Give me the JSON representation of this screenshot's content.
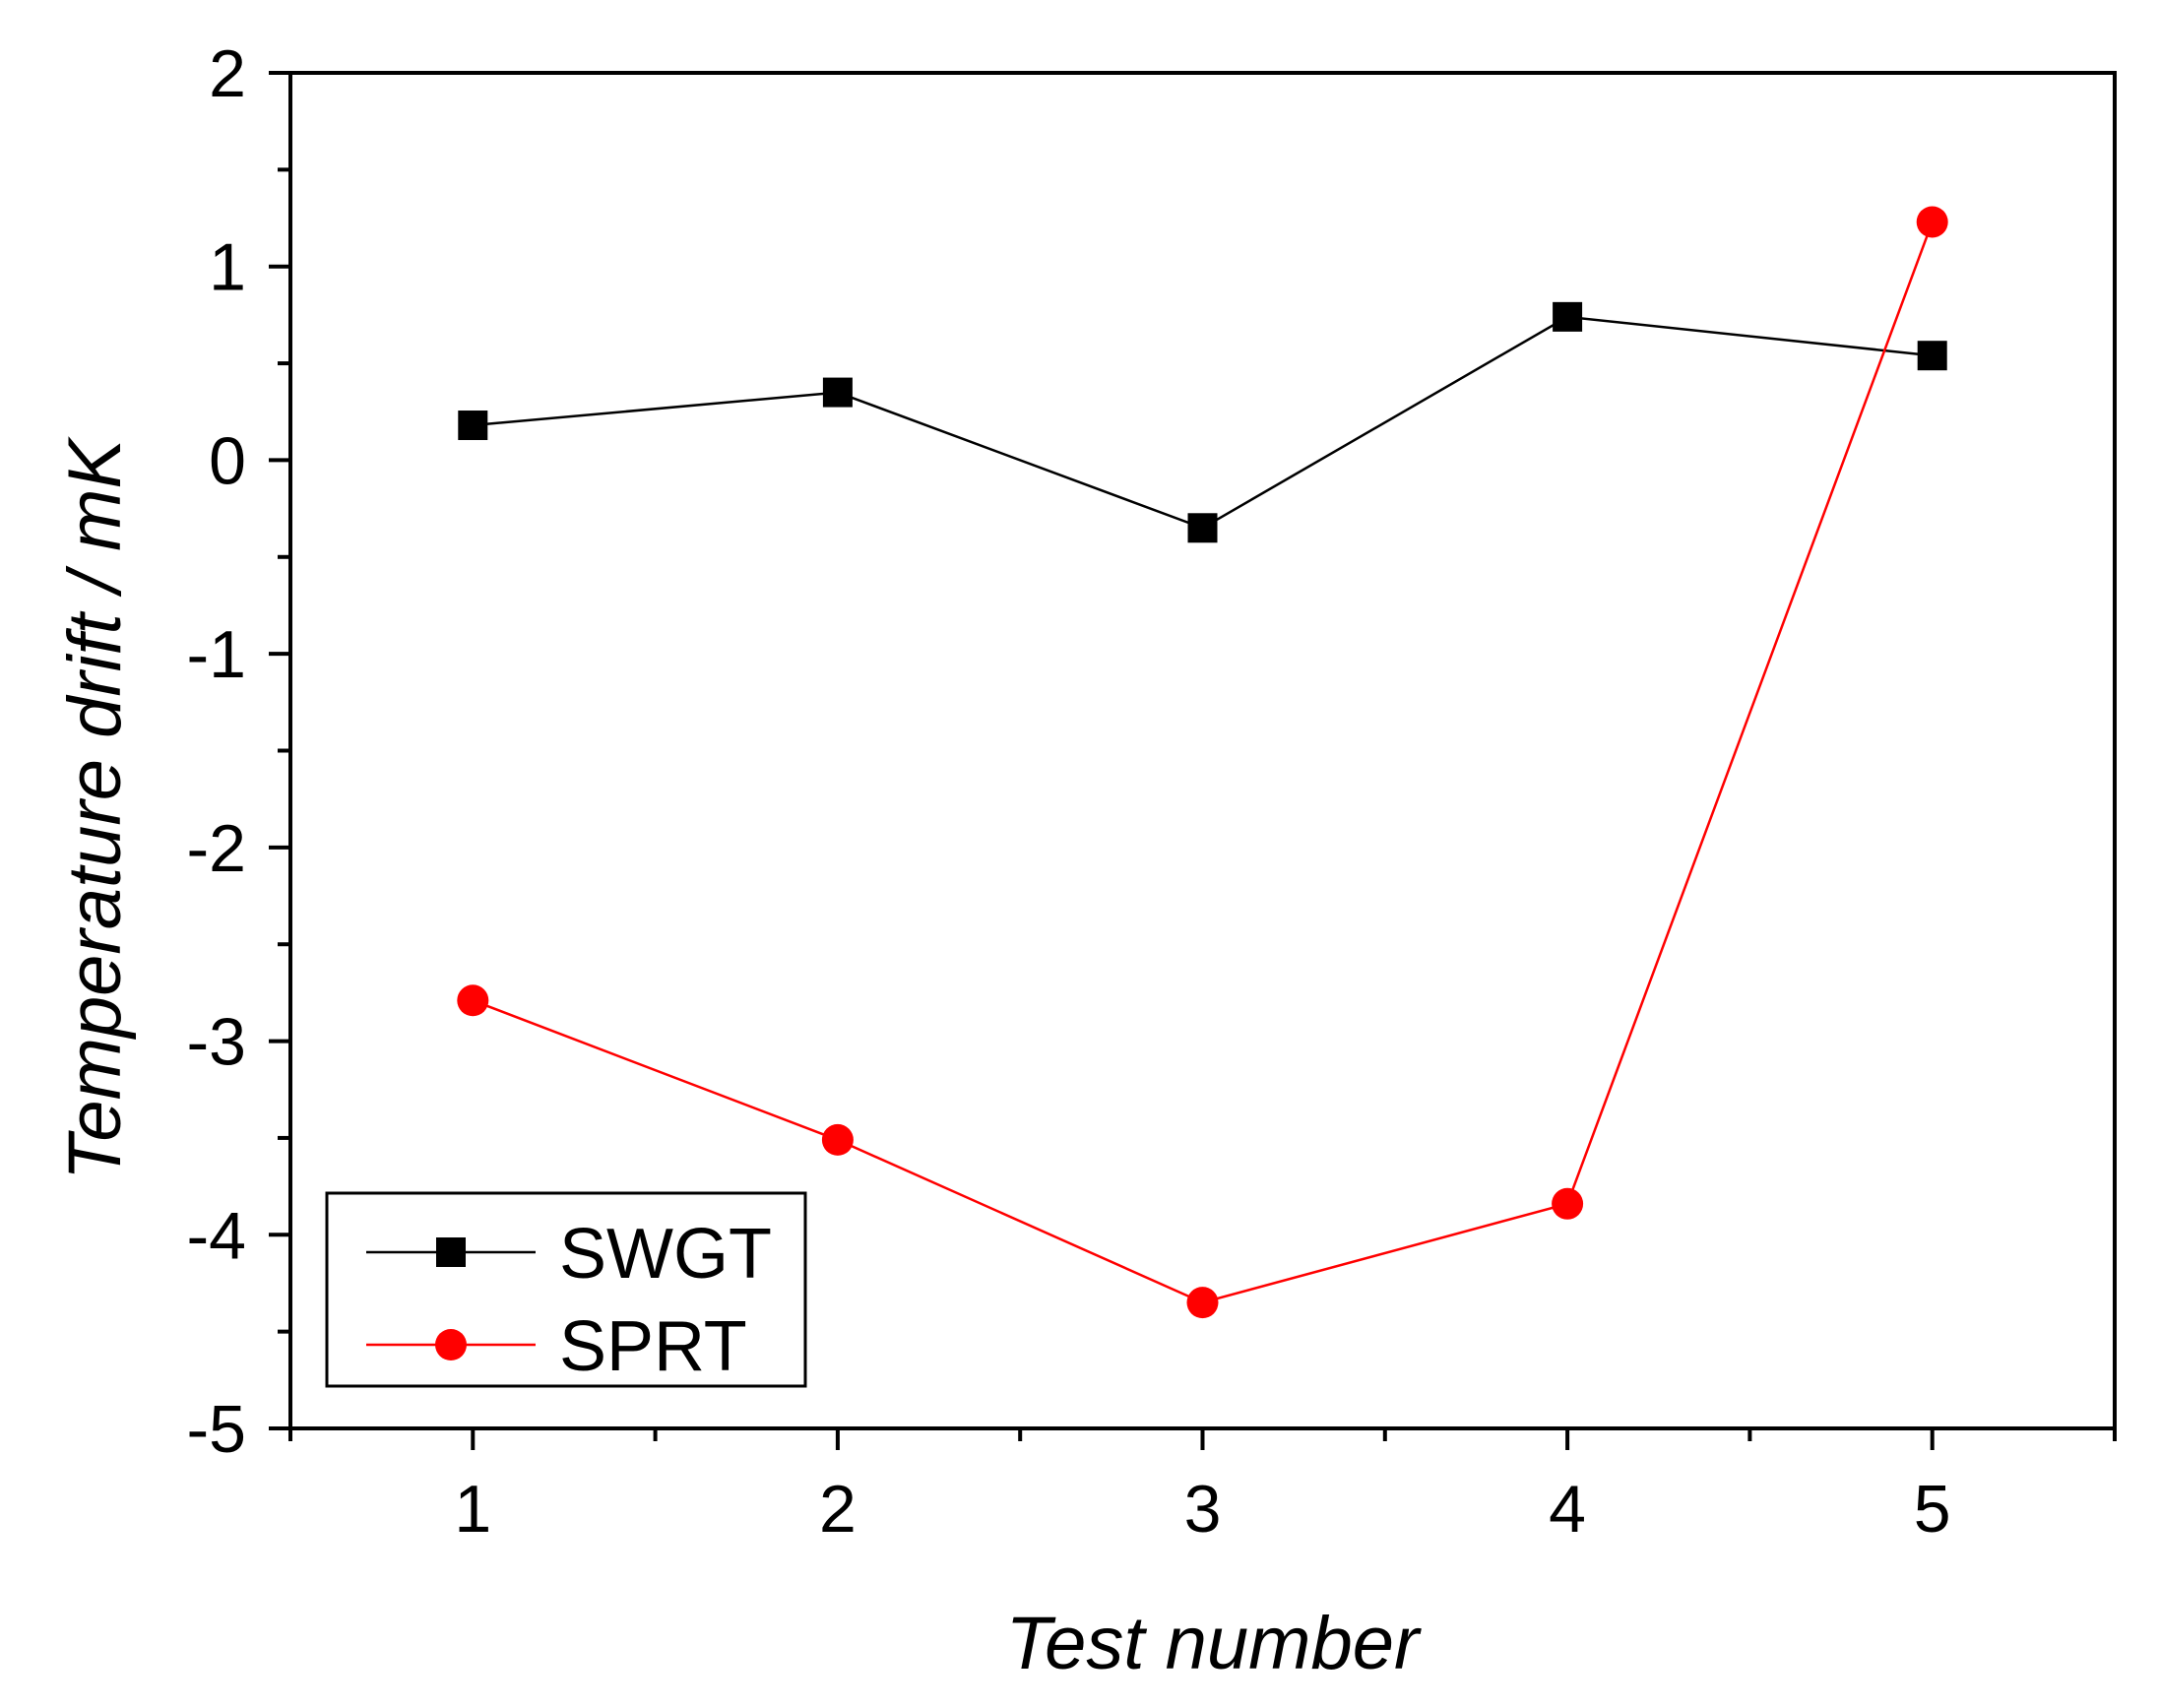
{
  "chart_data": {
    "type": "line",
    "title": "",
    "xlabel": "Test number",
    "ylabel": "Temperature drift / mK",
    "xlim": [
      0.5,
      5.5
    ],
    "ylim": [
      -5,
      2
    ],
    "x_ticks": [
      1,
      2,
      3,
      4,
      5
    ],
    "x_tick_labels": [
      "1",
      "2",
      "3",
      "4",
      "5"
    ],
    "x_minor_ticks": [
      0.5,
      1.5,
      2.5,
      3.5,
      4.5,
      5.5
    ],
    "y_ticks": [
      -5,
      -4,
      -3,
      -2,
      -1,
      0,
      1,
      2
    ],
    "y_tick_labels": [
      "-5",
      "-4",
      "-3",
      "-2",
      "-1",
      "0",
      "1",
      "2"
    ],
    "y_minor_ticks": [
      -4.5,
      -3.5,
      -2.5,
      -1.5,
      -0.5,
      0.5,
      1.5
    ],
    "grid": false,
    "legend_position": "bottom-left",
    "x": [
      1,
      2,
      3,
      4,
      5
    ],
    "series": [
      {
        "name": "SWGT",
        "values": [
          0.18,
          0.35,
          -0.35,
          0.74,
          0.54
        ],
        "color": "#000000",
        "marker": "square"
      },
      {
        "name": "SPRT",
        "values": [
          -2.79,
          -3.51,
          -4.35,
          -3.84,
          1.23
        ],
        "color": "#ff0000",
        "marker": "circle"
      }
    ]
  }
}
